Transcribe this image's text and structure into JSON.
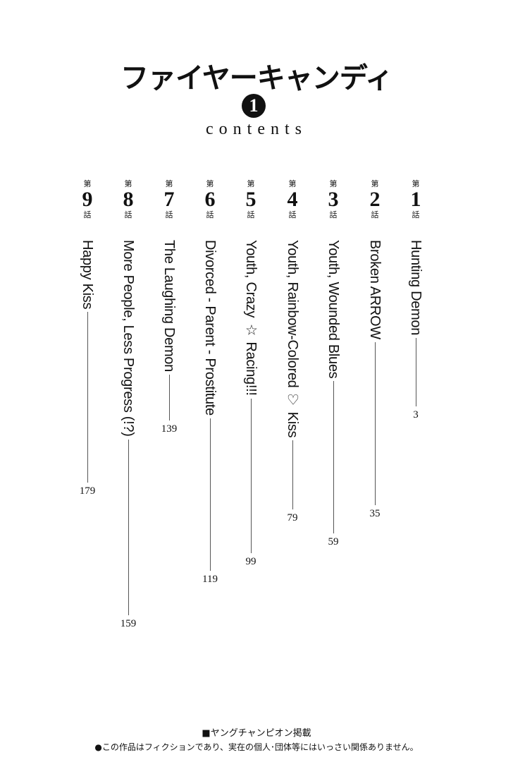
{
  "header": {
    "title": "ファイヤーキャンディ",
    "volume": "1",
    "subtitle": "contents"
  },
  "chapter_prefix": "第",
  "chapter_suffix": "話",
  "chapters": [
    {
      "number": "1",
      "title": "Hunting Demon",
      "page": "3"
    },
    {
      "number": "2",
      "title": "Broken ARROW",
      "page": "35"
    },
    {
      "number": "3",
      "title": "Youth, Wounded Blues",
      "page": "59"
    },
    {
      "number": "4",
      "title": "Youth, Rainbow-Colored ♡ Kiss",
      "page": "79"
    },
    {
      "number": "5",
      "title": "Youth, Crazy ☆ Racing!!!",
      "page": "99"
    },
    {
      "number": "6",
      "title": "Divorced - Parent - Prostitute",
      "page": "119"
    },
    {
      "number": "7",
      "title": "The Laughing Demon",
      "page": "139"
    },
    {
      "number": "8",
      "title": "More People, Less Progress (!?)",
      "page": "159"
    },
    {
      "number": "9",
      "title": "Happy Kiss",
      "page": "179"
    }
  ],
  "footer": {
    "serialization": "■ヤングチャンピオン掲載",
    "disclaimer": "●この作品はフィクションであり、実在の個人･団体等にはいっさい関係ありません。"
  }
}
